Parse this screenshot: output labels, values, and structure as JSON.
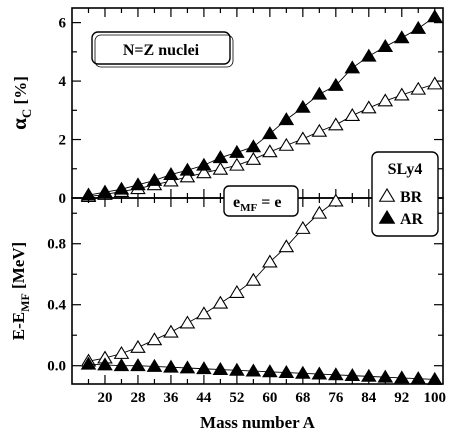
{
  "chart_data": [
    {
      "type": "line",
      "panel": "top",
      "ylabel_main": "α",
      "ylabel_sub": "C",
      "ylabel_unit": "[%]",
      "ylim": [
        0,
        6.5
      ],
      "yticks": [
        0,
        2,
        4,
        6
      ],
      "annotation": "N=Z nuclei",
      "series": [
        {
          "name": "BR",
          "marker": "open-triangle",
          "x": [
            16,
            20,
            24,
            28,
            32,
            36,
            40,
            44,
            48,
            52,
            56,
            60,
            64,
            68,
            72,
            76,
            80,
            84,
            88,
            92,
            96,
            100
          ],
          "y": [
            0.05,
            0.12,
            0.22,
            0.32,
            0.45,
            0.58,
            0.72,
            0.86,
            0.98,
            1.12,
            1.32,
            1.58,
            1.8,
            2.02,
            2.28,
            2.5,
            2.82,
            3.08,
            3.32,
            3.52,
            3.72,
            3.9
          ]
        },
        {
          "name": "AR",
          "marker": "filled-triangle",
          "x": [
            16,
            20,
            24,
            28,
            32,
            36,
            40,
            44,
            48,
            52,
            56,
            60,
            64,
            68,
            72,
            76,
            80,
            84,
            88,
            92,
            96,
            100
          ],
          "y": [
            0.1,
            0.2,
            0.3,
            0.45,
            0.6,
            0.8,
            0.95,
            1.12,
            1.38,
            1.56,
            1.75,
            2.2,
            2.68,
            3.1,
            3.55,
            3.85,
            4.45,
            4.85,
            5.18,
            5.48,
            5.8,
            6.2
          ]
        }
      ]
    },
    {
      "type": "line",
      "panel": "bottom",
      "xlabel": "Mass number A",
      "ylabel_main": "E-E",
      "ylabel_sub": "MF",
      "ylabel_unit": "[MeV]",
      "xticks": [
        20,
        28,
        36,
        44,
        52,
        60,
        68,
        76,
        84,
        92,
        100
      ],
      "xlim": [
        12,
        102
      ],
      "ylim": [
        -0.12,
        1.1
      ],
      "yticks": [
        0.0,
        0.4,
        0.8
      ],
      "ytick_labels": [
        "0.0",
        "0.4",
        "0.8"
      ],
      "annotation_main": "e",
      "annotation_sub": "MF",
      "annotation_rest": " = e",
      "legend": {
        "title": "SLy4",
        "placement": "top-right",
        "entries": [
          "BR",
          "AR"
        ]
      },
      "series": [
        {
          "name": "BR",
          "marker": "open-triangle",
          "x": [
            16,
            20,
            24,
            28,
            32,
            36,
            40,
            44,
            48,
            52,
            56,
            60,
            64,
            68,
            72,
            76
          ],
          "y": [
            0.03,
            0.05,
            0.08,
            0.12,
            0.17,
            0.22,
            0.28,
            0.34,
            0.41,
            0.48,
            0.56,
            0.68,
            0.78,
            0.9,
            1.0,
            1.08
          ]
        },
        {
          "name": "AR",
          "marker": "filled-triangle",
          "x": [
            16,
            20,
            24,
            28,
            32,
            36,
            40,
            44,
            48,
            52,
            56,
            60,
            64,
            68,
            72,
            76,
            80,
            84,
            88,
            92,
            96,
            100
          ],
          "y": [
            0.01,
            0.005,
            0.0,
            0.0,
            -0.005,
            -0.01,
            -0.015,
            -0.02,
            -0.025,
            -0.03,
            -0.035,
            -0.04,
            -0.045,
            -0.05,
            -0.055,
            -0.06,
            -0.065,
            -0.07,
            -0.075,
            -0.08,
            -0.085,
            -0.09
          ]
        }
      ]
    }
  ]
}
